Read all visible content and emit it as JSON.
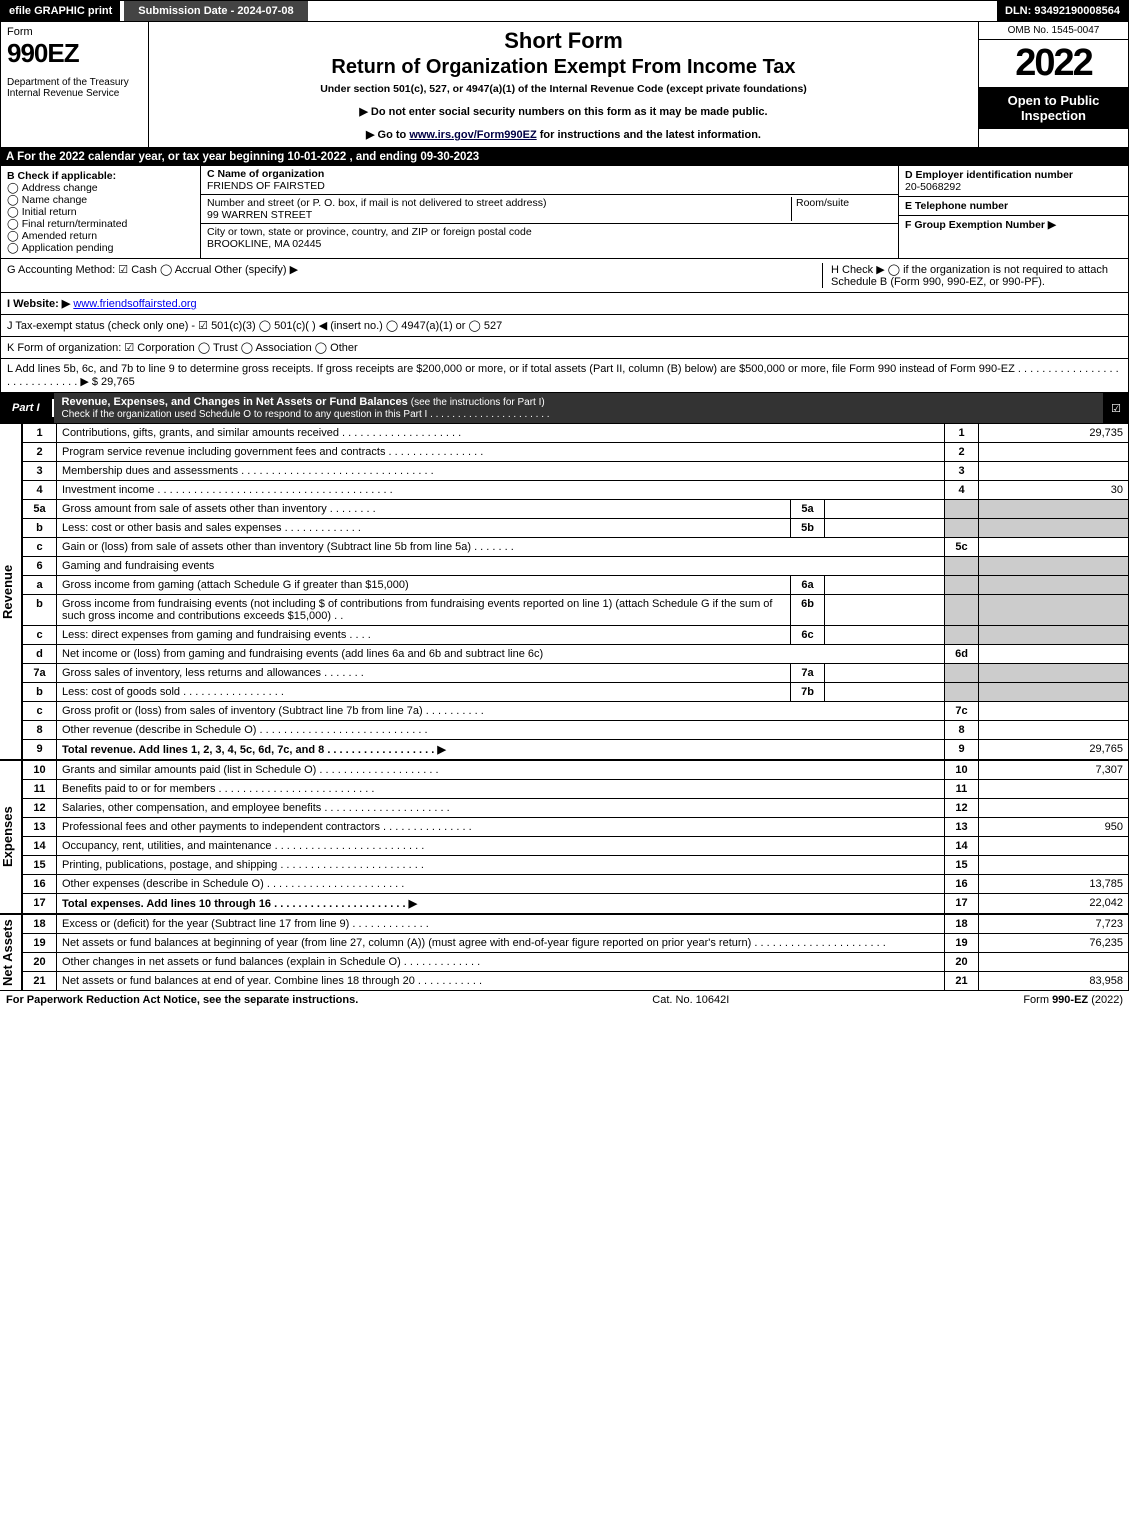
{
  "topbar": {
    "efile": "efile GRAPHIC print",
    "submission": "Submission Date - 2024-07-08",
    "dln": "DLN: 93492190008564"
  },
  "header": {
    "form_label": "Form",
    "form_number": "990EZ",
    "dept": "Department of the Treasury\nInternal Revenue Service",
    "short_form": "Short Form",
    "return_title": "Return of Organization Exempt From Income Tax",
    "subtitle": "Under section 501(c), 527, or 4947(a)(1) of the Internal Revenue Code (except private foundations)",
    "directive1": "▶ Do not enter social security numbers on this form as it may be made public.",
    "directive2_pre": "▶ Go to ",
    "directive2_link": "www.irs.gov/Form990EZ",
    "directive2_post": " for instructions and the latest information.",
    "omb": "OMB No. 1545-0047",
    "year": "2022",
    "open": "Open to Public Inspection"
  },
  "rowA": "A  For the 2022 calendar year, or tax year beginning 10-01-2022 , and ending 09-30-2023",
  "colB": {
    "title": "B  Check if applicable:",
    "items": [
      "Address change",
      "Name change",
      "Initial return",
      "Final return/terminated",
      "Amended return",
      "Application pending"
    ]
  },
  "colC": {
    "name_lbl": "C Name of organization",
    "name": "FRIENDS OF FAIRSTED",
    "street_lbl": "Number and street (or P. O. box, if mail is not delivered to street address)",
    "room_lbl": "Room/suite",
    "street": "99 WARREN STREET",
    "city_lbl": "City or town, state or province, country, and ZIP or foreign postal code",
    "city": "BROOKLINE, MA  02445"
  },
  "colD": {
    "d_lbl": "D Employer identification number",
    "d_val": "20-5068292",
    "e_lbl": "E Telephone number",
    "e_val": "",
    "f_lbl": "F Group Exemption Number  ▶",
    "f_val": ""
  },
  "rowG": {
    "left": "G Accounting Method:  ☑ Cash  ◯ Accrual   Other (specify) ▶",
    "right_h": "H  Check ▶  ◯  if the organization is not required to attach Schedule B (Form 990, 990-EZ, or 990-PF)."
  },
  "rowI": {
    "label": "I Website: ▶",
    "value": "www.friendsoffairsted.org"
  },
  "rowJ": "J Tax-exempt status (check only one) -  ☑ 501(c)(3)  ◯  501(c)(  ) ◀ (insert no.)  ◯  4947(a)(1) or  ◯  527",
  "rowK": "K Form of organization:  ☑ Corporation  ◯ Trust  ◯ Association  ◯ Other",
  "rowL": {
    "text": "L Add lines 5b, 6c, and 7b to line 9 to determine gross receipts. If gross receipts are $200,000 or more, or if total assets (Part II, column (B) below) are $500,000 or more, file Form 990 instead of Form 990-EZ  . . . . . . . . . . . . . . . . . . . . . . . . . . . . .  ▶ $",
    "amount": "29,765"
  },
  "part1": {
    "tab": "Part I",
    "title": "Revenue, Expenses, and Changes in Net Assets or Fund Balances",
    "title_sub": "(see the instructions for Part I)",
    "checknote": "Check if the organization used Schedule O to respond to any question in this Part I . . . . . . . . . . . . . . . . . . . . . .",
    "checked": "☑"
  },
  "sections": {
    "revenue_label": "Revenue",
    "expenses_label": "Expenses",
    "netassets_label": "Net Assets"
  },
  "lines": {
    "l1": {
      "n": "1",
      "d": "Contributions, gifts, grants, and similar amounts received . . . . . . . . . . . . . . . . . . . .",
      "box": "1",
      "amt": "29,735"
    },
    "l2": {
      "n": "2",
      "d": "Program service revenue including government fees and contracts . . . . . . . . . . . . . . . .",
      "box": "2",
      "amt": ""
    },
    "l3": {
      "n": "3",
      "d": "Membership dues and assessments . . . . . . . . . . . . . . . . . . . . . . . . . . . . . . . .",
      "box": "3",
      "amt": ""
    },
    "l4": {
      "n": "4",
      "d": "Investment income . . . . . . . . . . . . . . . . . . . . . . . . . . . . . . . . . . . . . . .",
      "box": "4",
      "amt": "30"
    },
    "l5a": {
      "n": "5a",
      "d": "Gross amount from sale of assets other than inventory . . . . . . . .",
      "sb": "5a",
      "sv": ""
    },
    "l5b": {
      "n": "b",
      "d": "Less: cost or other basis and sales expenses . . . . . . . . . . . . .",
      "sb": "5b",
      "sv": ""
    },
    "l5c": {
      "n": "c",
      "d": "Gain or (loss) from sale of assets other than inventory (Subtract line 5b from line 5a) . . . . . . .",
      "box": "5c",
      "amt": ""
    },
    "l6": {
      "n": "6",
      "d": "Gaming and fundraising events"
    },
    "l6a": {
      "n": "a",
      "d": "Gross income from gaming (attach Schedule G if greater than $15,000)",
      "sb": "6a",
      "sv": ""
    },
    "l6b": {
      "n": "b",
      "d": "Gross income from fundraising events (not including $                    of contributions from fundraising events reported on line 1) (attach Schedule G if the sum of such gross income and contributions exceeds $15,000)    . .",
      "sb": "6b",
      "sv": ""
    },
    "l6c": {
      "n": "c",
      "d": "Less: direct expenses from gaming and fundraising events    . . . .",
      "sb": "6c",
      "sv": ""
    },
    "l6d": {
      "n": "d",
      "d": "Net income or (loss) from gaming and fundraising events (add lines 6a and 6b and subtract line 6c)",
      "box": "6d",
      "amt": ""
    },
    "l7a": {
      "n": "7a",
      "d": "Gross sales of inventory, less returns and allowances . . . . . . .",
      "sb": "7a",
      "sv": ""
    },
    "l7b": {
      "n": "b",
      "d": "Less: cost of goods sold       . . . . . . . . . . . . . . . . .",
      "sb": "7b",
      "sv": ""
    },
    "l7c": {
      "n": "c",
      "d": "Gross profit or (loss) from sales of inventory (Subtract line 7b from line 7a) . . . . . . . . . .",
      "box": "7c",
      "amt": ""
    },
    "l8": {
      "n": "8",
      "d": "Other revenue (describe in Schedule O) . . . . . . . . . . . . . . . . . . . . . . . . . . . .",
      "box": "8",
      "amt": ""
    },
    "l9": {
      "n": "9",
      "d": "Total revenue. Add lines 1, 2, 3, 4, 5c, 6d, 7c, and 8  . . . . . . . . . . . . . . . . . .   ▶",
      "box": "9",
      "amt": "29,765",
      "bold": true
    },
    "l10": {
      "n": "10",
      "d": "Grants and similar amounts paid (list in Schedule O) . . . . . . . . . . . . . . . . . . . .",
      "box": "10",
      "amt": "7,307"
    },
    "l11": {
      "n": "11",
      "d": "Benefits paid to or for members      . . . . . . . . . . . . . . . . . . . . . . . . . .",
      "box": "11",
      "amt": ""
    },
    "l12": {
      "n": "12",
      "d": "Salaries, other compensation, and employee benefits . . . . . . . . . . . . . . . . . . . . .",
      "box": "12",
      "amt": ""
    },
    "l13": {
      "n": "13",
      "d": "Professional fees and other payments to independent contractors . . . . . . . . . . . . . . .",
      "box": "13",
      "amt": "950"
    },
    "l14": {
      "n": "14",
      "d": "Occupancy, rent, utilities, and maintenance . . . . . . . . . . . . . . . . . . . . . . . . .",
      "box": "14",
      "amt": ""
    },
    "l15": {
      "n": "15",
      "d": "Printing, publications, postage, and shipping . . . . . . . . . . . . . . . . . . . . . . . .",
      "box": "15",
      "amt": ""
    },
    "l16": {
      "n": "16",
      "d": "Other expenses (describe in Schedule O)      . . . . . . . . . . . . . . . . . . . . . . .",
      "box": "16",
      "amt": "13,785"
    },
    "l17": {
      "n": "17",
      "d": "Total expenses. Add lines 10 through 16     . . . . . . . . . . . . . . . . . . . . . .   ▶",
      "box": "17",
      "amt": "22,042",
      "bold": true
    },
    "l18": {
      "n": "18",
      "d": "Excess or (deficit) for the year (Subtract line 17 from line 9)       . . . . . . . . . . . . .",
      "box": "18",
      "amt": "7,723"
    },
    "l19": {
      "n": "19",
      "d": "Net assets or fund balances at beginning of year (from line 27, column (A)) (must agree with end-of-year figure reported on prior year's return) . . . . . . . . . . . . . . . . . . . . . .",
      "box": "19",
      "amt": "76,235"
    },
    "l20": {
      "n": "20",
      "d": "Other changes in net assets or fund balances (explain in Schedule O) . . . . . . . . . . . . .",
      "box": "20",
      "amt": ""
    },
    "l21": {
      "n": "21",
      "d": "Net assets or fund balances at end of year. Combine lines 18 through 20 . . . . . . . . . . .",
      "box": "21",
      "amt": "83,958"
    }
  },
  "footer": {
    "left": "For Paperwork Reduction Act Notice, see the separate instructions.",
    "mid": "Cat. No. 10642I",
    "right_pre": "Form ",
    "right_bold": "990-EZ",
    "right_post": " (2022)"
  }
}
